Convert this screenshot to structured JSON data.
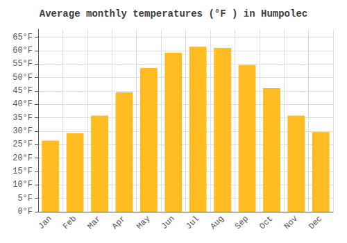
{
  "chart_data": {
    "type": "bar",
    "title": "Average monthly temperatures (°F ) in Humpolec",
    "categories": [
      "Jan",
      "Feb",
      "Mar",
      "Apr",
      "May",
      "Jun",
      "Jul",
      "Aug",
      "Sep",
      "Oct",
      "Nov",
      "Dec"
    ],
    "values": [
      26.5,
      29.3,
      35.8,
      44.5,
      53.5,
      59.2,
      61.5,
      61.0,
      54.7,
      46.0,
      35.8,
      29.7
    ],
    "color": "#FFBB22",
    "ylim": [
      0,
      68
    ],
    "yticks": [
      {
        "value": 0,
        "label": "0°F"
      },
      {
        "value": 5,
        "label": "5°F"
      },
      {
        "value": 10,
        "label": "10°F"
      },
      {
        "value": 15,
        "label": "15°F"
      },
      {
        "value": 20,
        "label": "20°F"
      },
      {
        "value": 25,
        "label": "25°F"
      },
      {
        "value": 30,
        "label": "30°F"
      },
      {
        "value": 35,
        "label": "35°F"
      },
      {
        "value": 40,
        "label": "40°F"
      },
      {
        "value": 45,
        "label": "45°F"
      },
      {
        "value": 50,
        "label": "50°F"
      },
      {
        "value": 55,
        "label": "55°F"
      },
      {
        "value": 60,
        "label": "60°F"
      },
      {
        "value": 65,
        "label": "65°F"
      }
    ],
    "grid": true
  }
}
